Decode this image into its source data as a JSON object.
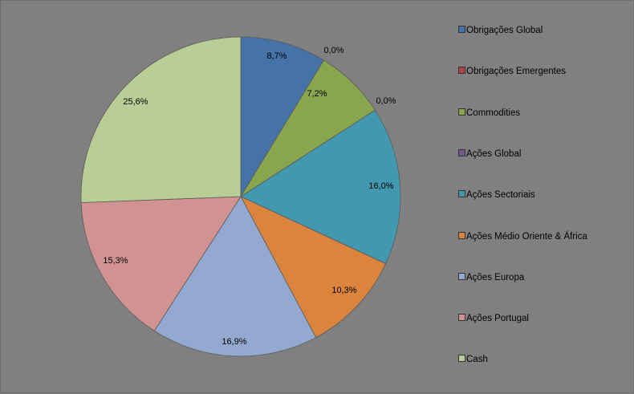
{
  "chart_data": {
    "type": "pie",
    "start_angle_deg": 0,
    "direction": "clockwise",
    "slices": [
      {
        "name": "Obrigações Global",
        "value": 8.7,
        "label": "8,7%",
        "color": "#4572a7"
      },
      {
        "name": "Obrigações Emergentes",
        "value": 0.0,
        "label": "0,0%",
        "color": "#aa4643"
      },
      {
        "name": "Commodities",
        "value": 7.2,
        "label": "7,2%",
        "color": "#89a54e"
      },
      {
        "name": "Ações Global",
        "value": 0.0,
        "label": "0,0%",
        "color": "#71588f"
      },
      {
        "name": "Ações Sectoriais",
        "value": 16.0,
        "label": "16,0%",
        "color": "#4198af"
      },
      {
        "name": "Ações Médio Oriente & África",
        "value": 10.3,
        "label": "10,3%",
        "color": "#db843d"
      },
      {
        "name": "Ações Europa",
        "value": 16.9,
        "label": "16,9%",
        "color": "#93a9cf"
      },
      {
        "name": "Ações Portugal",
        "value": 15.3,
        "label": "15,3%",
        "color": "#d19392"
      },
      {
        "name": "Cash",
        "value": 25.6,
        "label": "25,6%",
        "color": "#b9cd96"
      }
    ],
    "legend_position": "right"
  }
}
